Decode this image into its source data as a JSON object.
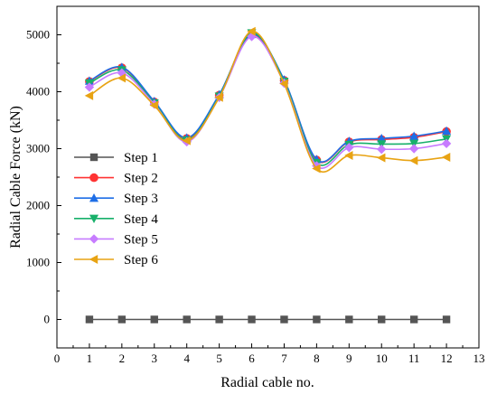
{
  "chart_data": {
    "type": "line",
    "title": "",
    "xlabel": "Radial cable no.",
    "ylabel": "Radial Cable Force (kN)",
    "xlim": [
      0,
      13
    ],
    "ylim": [
      -500,
      5500
    ],
    "x_ticks": [
      0,
      1,
      2,
      3,
      4,
      5,
      6,
      7,
      8,
      9,
      10,
      11,
      12,
      13
    ],
    "y_ticks": [
      0,
      1000,
      2000,
      3000,
      4000,
      5000
    ],
    "grid": false,
    "legend_position": "left-center",
    "x": [
      1,
      2,
      3,
      4,
      5,
      6,
      7,
      8,
      9,
      10,
      11,
      12
    ],
    "series": [
      {
        "name": "Step 1",
        "color": "#555555",
        "marker": "square",
        "values": [
          0,
          0,
          0,
          0,
          0,
          0,
          0,
          0,
          0,
          0,
          0,
          0
        ]
      },
      {
        "name": "Step 2",
        "color": "#ff3333",
        "marker": "circle",
        "values": [
          4180,
          4420,
          3820,
          3180,
          3940,
          5000,
          4200,
          2800,
          3120,
          3160,
          3200,
          3300
        ]
      },
      {
        "name": "Step 3",
        "color": "#1e6ee6",
        "marker": "triangle-up",
        "values": [
          4190,
          4430,
          3830,
          3190,
          3950,
          5010,
          4210,
          2810,
          3130,
          3180,
          3220,
          3310
        ]
      },
      {
        "name": "Step 4",
        "color": "#17b06a",
        "marker": "triangle-down",
        "values": [
          4150,
          4380,
          3800,
          3150,
          3920,
          5030,
          4180,
          2750,
          3070,
          3080,
          3090,
          3170
        ]
      },
      {
        "name": "Step 5",
        "color": "#c77cff",
        "marker": "diamond",
        "values": [
          4080,
          4330,
          3780,
          3120,
          3900,
          4970,
          4150,
          2700,
          3020,
          2990,
          3000,
          3090
        ]
      },
      {
        "name": "Step 6",
        "color": "#e8a313",
        "marker": "triangle-left",
        "values": [
          3930,
          4240,
          3760,
          3140,
          3900,
          5060,
          4140,
          2650,
          2880,
          2840,
          2790,
          2850
        ]
      }
    ]
  }
}
